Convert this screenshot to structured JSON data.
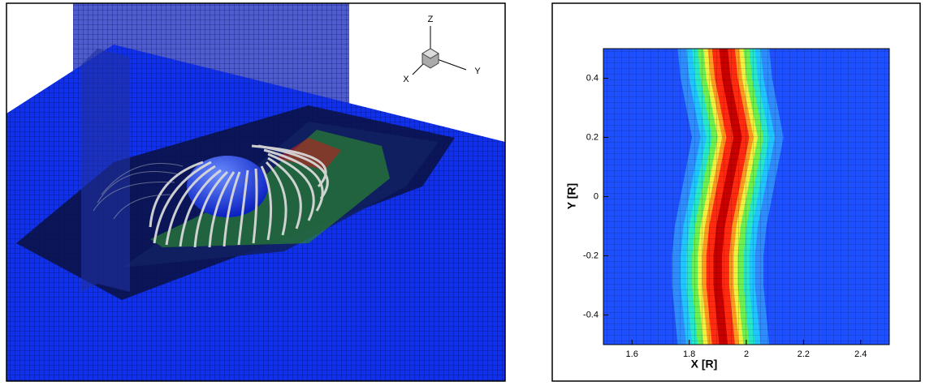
{
  "scene": {
    "axis_labels": {
      "z": "Z",
      "x": "X",
      "y": "Y"
    }
  },
  "chart_data": {
    "type": "contour",
    "xlabel": "X [R]",
    "ylabel": "Y [R]",
    "xlim": [
      1.5,
      2.5
    ],
    "ylim": [
      -0.5,
      0.5
    ],
    "xticks": [
      1.6,
      1.8,
      2,
      2.2,
      2.4
    ],
    "yticks": [
      -0.4,
      -0.2,
      0,
      0.2,
      0.4
    ],
    "background": "#1e50ff",
    "colors": [
      "#2f8cff",
      "#20c4ff",
      "#28e6c8",
      "#6cf050",
      "#f0f040",
      "#ff9a20",
      "#ff2a10",
      "#c80000"
    ],
    "y": [
      0.5,
      0.4,
      0.3,
      0.2,
      0.1,
      0,
      -0.1,
      -0.2,
      -0.3,
      -0.4,
      -0.5
    ],
    "x": [
      1.92,
      1.93,
      1.95,
      1.97,
      1.95,
      1.93,
      1.91,
      1.9,
      1.9,
      1.91,
      1.92
    ]
  }
}
